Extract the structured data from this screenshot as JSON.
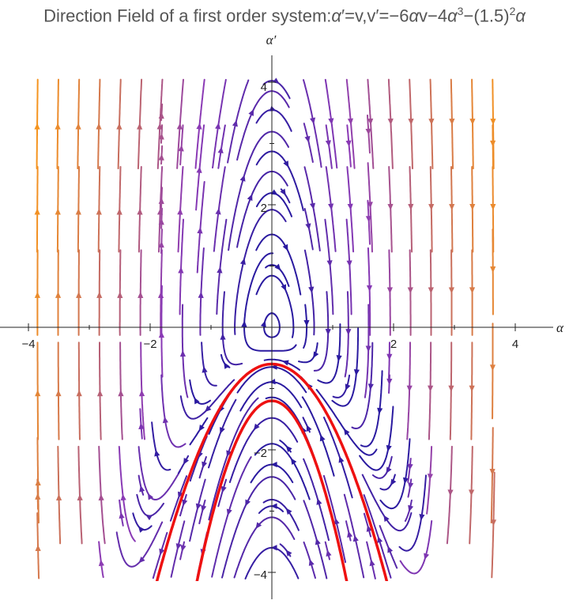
{
  "title": {
    "prefix": "Direction Field of a first order system:",
    "alpha1": "α",
    "part1": "′=v,v′=−6",
    "alpha2": "α",
    "part2": "v−4",
    "alpha3": "α",
    "exp3": "3",
    "part3": "−(1.5)",
    "exp2": "2",
    "alpha4": "α"
  },
  "chart_data": {
    "type": "streamplot",
    "title": "Direction Field of a first order system:α′=v,v′=−6αv−4α³−(1.5)²α",
    "xlabel": "α",
    "ylabel": "α′",
    "xlim": [
      -4,
      4
    ],
    "ylim": [
      -4,
      4
    ],
    "x_ticks": [
      -4,
      -2,
      2,
      4
    ],
    "y_ticks": [
      4,
      2,
      -2,
      -4
    ],
    "x_tick_labels": [
      "−4",
      "−2",
      "2",
      "4"
    ],
    "y_tick_labels": [
      "4",
      "2",
      "−2",
      "−4"
    ],
    "system": {
      "dalpha": "v",
      "dv": "-6*alpha*v - 4*alpha^3 - 2.25*alpha"
    },
    "color_scale": {
      "low": "#2a1aa0",
      "mid": "#8b3ab5",
      "high": "#f5941f"
    },
    "highlighted_curves": [
      {
        "color": "#ee1111",
        "apex": [
          0,
          -0.6
        ],
        "x_at_bottom": [
          -1.85,
          1.85
        ],
        "y_bottom": -4
      },
      {
        "color": "#ee1111",
        "apex": [
          0,
          -1.2
        ],
        "x_at_bottom": [
          -1.2,
          1.2
        ],
        "y_bottom": -4
      }
    ]
  }
}
